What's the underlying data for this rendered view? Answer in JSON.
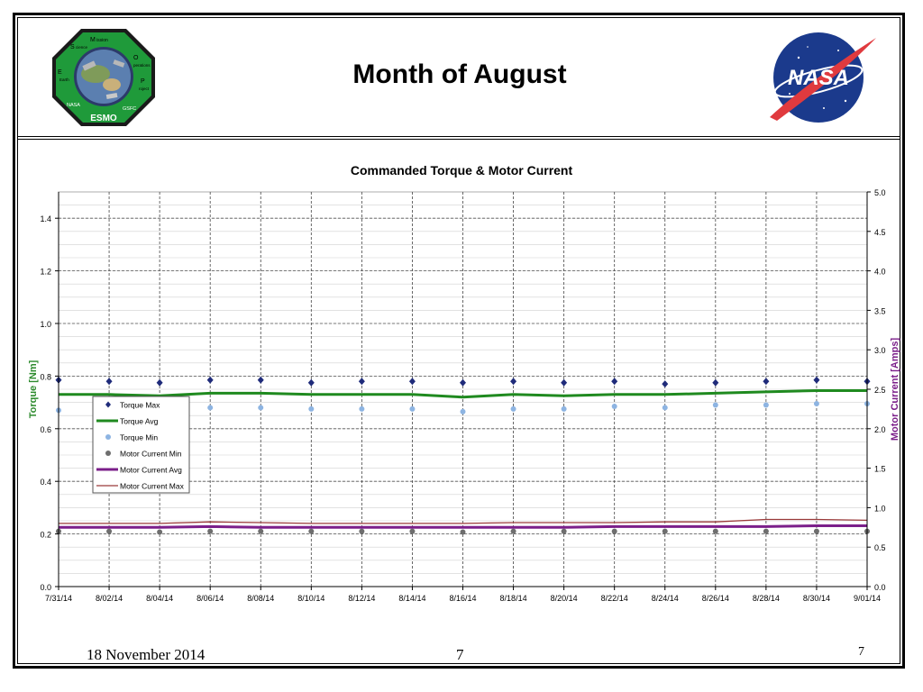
{
  "slide": {
    "title": "Month of August",
    "footer_date": "18 November 2014",
    "footer_center_page": "7",
    "footer_right_page": "7"
  },
  "logos": {
    "left": {
      "ring_text": [
        "ission",
        "perations",
        "roject",
        "GSFC",
        "NASA",
        "Earth",
        "cience"
      ],
      "caps": [
        "M",
        "O",
        "P",
        "E",
        "S"
      ],
      "bottom": "ESMO"
    },
    "right": {
      "text": "NASA"
    }
  },
  "colors": {
    "torque_max": "#1f2b7a",
    "torque_avg": "#1f8a1f",
    "torque_min": "#8db4e2",
    "motor_min": "#6e6e6e",
    "motor_avg": "#7b1f8a",
    "motor_max": "#9a3a3a",
    "left_axis_label": "#2e8b2e",
    "right_axis_label": "#7b1f8a"
  },
  "chart_data": {
    "type": "line",
    "title": "Commanded Torque & Motor Current",
    "ylabel_left": "Torque [Nm]",
    "ylabel_right": "Motor Current [Amps]",
    "ylim_left": [
      0,
      1.5
    ],
    "ylim_right": [
      0,
      5.0
    ],
    "y_ticks_left": [
      "0.0",
      "0.2",
      "0.4",
      "0.6",
      "0.8",
      "1.0",
      "1.2",
      "1.4"
    ],
    "y_ticks_right": [
      "0.0",
      "0.5",
      "1.0",
      "1.5",
      "2.0",
      "2.5",
      "3.0",
      "3.5",
      "4.0",
      "4.5",
      "5.0"
    ],
    "x_ticks": [
      "7/31/14",
      "8/02/14",
      "8/04/14",
      "8/06/14",
      "8/08/14",
      "8/10/14",
      "8/12/14",
      "8/14/14",
      "8/16/14",
      "8/18/14",
      "8/20/14",
      "8/22/14",
      "8/24/14",
      "8/26/14",
      "8/28/14",
      "8/30/14",
      "9/01/14"
    ],
    "x_dates": [
      "2014-07-31",
      "2014-08-02",
      "2014-08-04",
      "2014-08-06",
      "2014-08-08",
      "2014-08-10",
      "2014-08-12",
      "2014-08-14",
      "2014-08-16",
      "2014-08-18",
      "2014-08-20",
      "2014-08-22",
      "2014-08-24",
      "2014-08-26",
      "2014-08-28",
      "2014-08-30",
      "2014-09-01"
    ],
    "grid": true,
    "legend_position": "left",
    "series": [
      {
        "name": "Torque Max",
        "axis": "left",
        "style": "diamond",
        "values": [
          0.785,
          0.78,
          0.775,
          0.785,
          0.785,
          0.775,
          0.78,
          0.78,
          0.775,
          0.78,
          0.775,
          0.78,
          0.77,
          0.775,
          0.78,
          0.785,
          0.78
        ]
      },
      {
        "name": "Torque Avg",
        "axis": "left",
        "style": "line",
        "values": [
          0.73,
          0.73,
          0.725,
          0.735,
          0.735,
          0.73,
          0.73,
          0.73,
          0.72,
          0.73,
          0.725,
          0.73,
          0.73,
          0.735,
          0.74,
          0.745,
          0.745
        ]
      },
      {
        "name": "Torque Min",
        "axis": "left",
        "style": "dot",
        "values": [
          0.67,
          0.675,
          0.67,
          0.68,
          0.68,
          0.675,
          0.675,
          0.675,
          0.665,
          0.675,
          0.675,
          0.685,
          0.68,
          0.69,
          0.69,
          0.695,
          0.695
        ]
      },
      {
        "name": "Motor Current Min",
        "axis": "right",
        "style": "dot",
        "values": [
          0.7,
          0.7,
          0.69,
          0.7,
          0.7,
          0.7,
          0.7,
          0.7,
          0.69,
          0.7,
          0.7,
          0.7,
          0.7,
          0.7,
          0.7,
          0.7,
          0.7
        ]
      },
      {
        "name": "Motor Current Avg",
        "axis": "right",
        "style": "line",
        "values": [
          0.75,
          0.75,
          0.75,
          0.76,
          0.75,
          0.75,
          0.75,
          0.75,
          0.75,
          0.75,
          0.75,
          0.76,
          0.76,
          0.76,
          0.76,
          0.77,
          0.77
        ]
      },
      {
        "name": "Motor Current Max",
        "axis": "right",
        "style": "line",
        "values": [
          0.8,
          0.8,
          0.8,
          0.82,
          0.81,
          0.8,
          0.8,
          0.8,
          0.8,
          0.81,
          0.81,
          0.81,
          0.82,
          0.82,
          0.85,
          0.85,
          0.84
        ]
      }
    ]
  }
}
